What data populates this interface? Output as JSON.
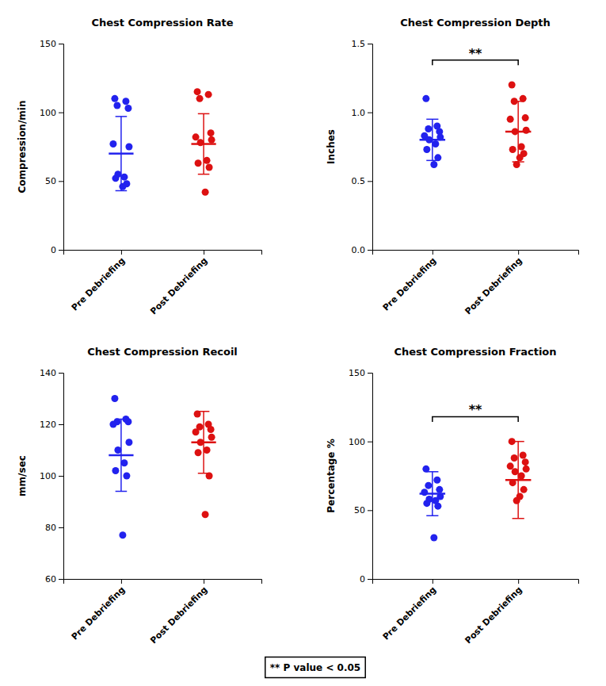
{
  "chart_data": [
    {
      "type": "strip",
      "title": "Chest Compression Rate",
      "y_label": "Compression/min",
      "categories": [
        "Pre Debriefing",
        "Post Debriefing"
      ],
      "values": [
        [
          110,
          108,
          105,
          103,
          77,
          75,
          55,
          53,
          52,
          48,
          46
        ],
        [
          115,
          113,
          110,
          85,
          82,
          80,
          78,
          65,
          63,
          60,
          42
        ]
      ],
      "mean": [
        70,
        77
      ],
      "error": [
        27,
        22
      ],
      "colors": [
        "#2222EE",
        "#DD1111"
      ],
      "ylim": [
        0,
        150
      ],
      "yticks": [
        0,
        50,
        100,
        150
      ],
      "grid": false
    },
    {
      "type": "strip",
      "title": "Chest Compression Depth",
      "y_label": "Inches",
      "categories": [
        "Pre Debriefing",
        "Post Debriefing"
      ],
      "values": [
        [
          1.1,
          0.9,
          0.88,
          0.86,
          0.83,
          0.82,
          0.8,
          0.77,
          0.73,
          0.67,
          0.62
        ],
        [
          1.2,
          1.1,
          1.08,
          0.96,
          0.95,
          0.87,
          0.86,
          0.75,
          0.73,
          0.7,
          0.67,
          0.62
        ]
      ],
      "mean": [
        0.8,
        0.86
      ],
      "error": [
        0.15,
        0.22
      ],
      "colors": [
        "#2222EE",
        "#DD1111"
      ],
      "ylim": [
        0,
        1.5
      ],
      "yticks": [
        {
          "value": 0,
          "label": "0.0"
        },
        0.5,
        {
          "value": 1,
          "label": "1.0"
        },
        1.5
      ],
      "grid": false,
      "annotations": [
        {
          "text": "**",
          "y": 1.38
        }
      ]
    },
    {
      "type": "strip",
      "title": "Chest Compression Recoil",
      "y_label": "mm/sec",
      "categories": [
        "Pre Debriefing",
        "Post Debriefing"
      ],
      "values": [
        [
          130,
          122,
          121,
          121,
          120,
          113,
          110,
          105,
          102,
          100,
          77
        ],
        [
          124,
          120,
          119,
          118,
          117,
          115,
          113,
          110,
          109,
          100,
          85
        ]
      ],
      "mean": [
        108,
        113
      ],
      "error": [
        14,
        12
      ],
      "colors": [
        "#2222EE",
        "#DD1111"
      ],
      "ylim": [
        60,
        140
      ],
      "yticks": [
        60,
        80,
        100,
        120,
        140
      ],
      "grid": false
    },
    {
      "type": "strip",
      "title": "Chest Compression Fraction",
      "y_label": "Percentage %",
      "categories": [
        "Pre Debriefing",
        "Post Debriefing"
      ],
      "values": [
        [
          80,
          72,
          68,
          65,
          63,
          60,
          58,
          57,
          55,
          53,
          30
        ],
        [
          100,
          90,
          88,
          85,
          82,
          80,
          78,
          75,
          70,
          65,
          60,
          57
        ]
      ],
      "mean": [
        62,
        72
      ],
      "error": [
        16,
        28
      ],
      "colors": [
        "#2222EE",
        "#DD1111"
      ],
      "ylim": [
        0,
        150
      ],
      "yticks": [
        0,
        50,
        100,
        150
      ],
      "grid": false,
      "annotations": [
        {
          "text": "**",
          "y": 118
        }
      ]
    }
  ],
  "annotations": [
    "** P value < 0.05"
  ]
}
